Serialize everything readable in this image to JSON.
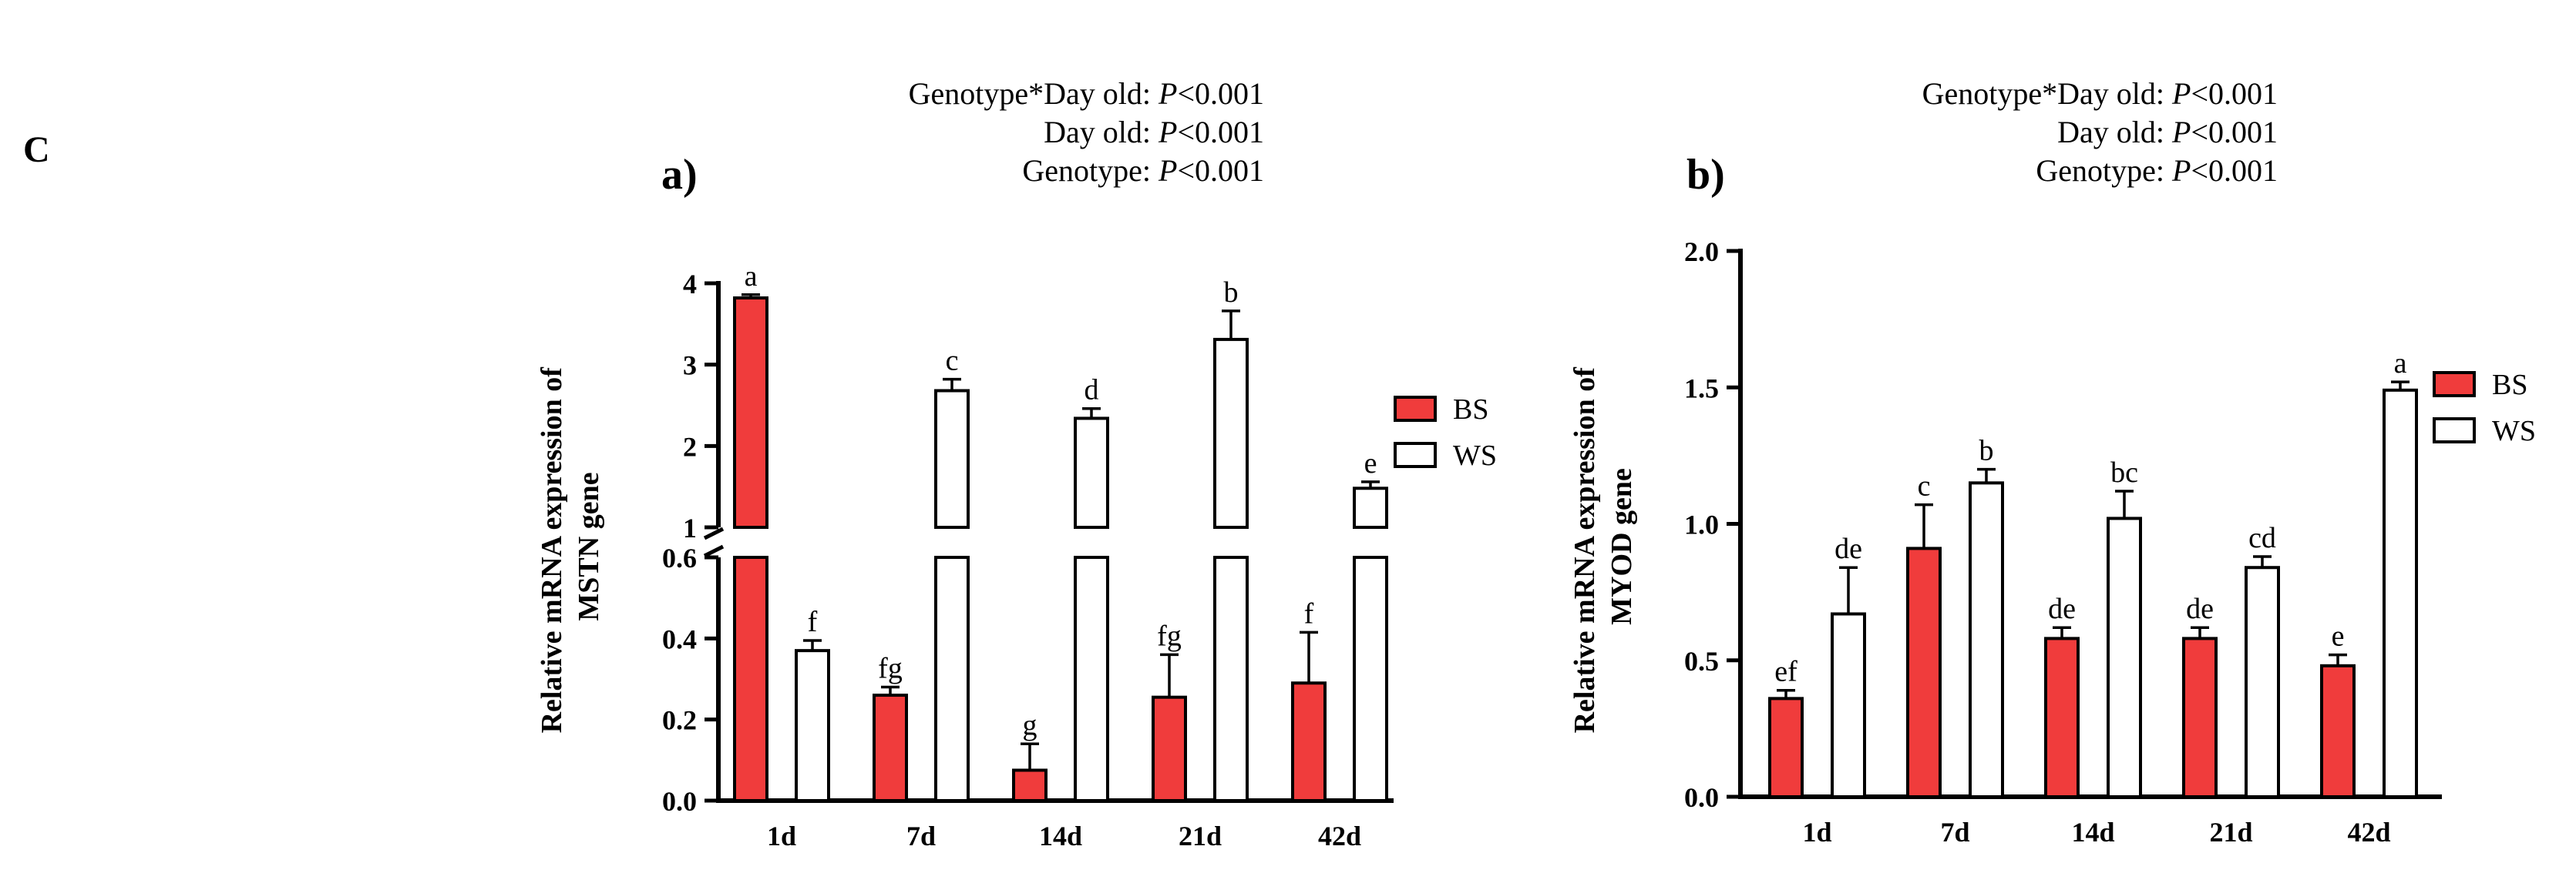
{
  "panel_label": "C",
  "chart_data": [
    {
      "type": "bar",
      "panel": "a)",
      "ylabel_line1": "Relative mRNA expression of",
      "ylabel_line2": "MSTN gene",
      "stats": [
        "Genotype*Day old: P<0.001",
        "Day old: P<0.001",
        "Genotype: P<0.001"
      ],
      "categories": [
        "1d",
        "7d",
        "14d",
        "21d",
        "42d"
      ],
      "broken_axis": {
        "lower_range": [
          0,
          0.6
        ],
        "upper_range": [
          1,
          4
        ],
        "lower_ticks": [
          "0.0",
          "0.2",
          "0.4",
          "0.6"
        ],
        "upper_ticks": [
          "1",
          "2",
          "3",
          "4"
        ]
      },
      "legend": [
        "BS",
        "WS"
      ],
      "series": [
        {
          "name": "BS",
          "color": "#f03c3c",
          "values": [
            3.82,
            0.26,
            0.075,
            0.255,
            0.29
          ],
          "errors": [
            0.04,
            0.02,
            0.065,
            0.105,
            0.125
          ],
          "letters": [
            "a",
            "fg",
            "g",
            "fg",
            "f"
          ]
        },
        {
          "name": "WS",
          "color": "#ffffff",
          "values": [
            0.37,
            2.68,
            2.34,
            3.31,
            1.48
          ],
          "errors": [
            0.025,
            0.14,
            0.12,
            0.35,
            0.08
          ],
          "letters": [
            "f",
            "c",
            "d",
            "b",
            "e"
          ]
        }
      ]
    },
    {
      "type": "bar",
      "panel": "b)",
      "ylabel_line1": "Relative mRNA expression of",
      "ylabel_line2": "MYOD gene",
      "stats": [
        "Genotype*Day old: P<0.001",
        "Day old: P<0.001",
        "Genotype: P<0.001"
      ],
      "categories": [
        "1d",
        "7d",
        "14d",
        "21d",
        "42d"
      ],
      "ylim": [
        0,
        2.0
      ],
      "yticks": [
        "0.0",
        "0.5",
        "1.0",
        "1.5",
        "2.0"
      ],
      "legend": [
        "BS",
        "WS"
      ],
      "series": [
        {
          "name": "BS",
          "color": "#f03c3c",
          "values": [
            0.36,
            0.91,
            0.58,
            0.58,
            0.48
          ],
          "errors": [
            0.03,
            0.16,
            0.04,
            0.04,
            0.04
          ],
          "letters": [
            "ef",
            "c",
            "de",
            "de",
            "e"
          ]
        },
        {
          "name": "WS",
          "color": "#ffffff",
          "values": [
            0.67,
            1.15,
            1.02,
            0.84,
            1.49
          ],
          "errors": [
            0.17,
            0.05,
            0.1,
            0.04,
            0.03
          ],
          "letters": [
            "de",
            "b",
            "bc",
            "cd",
            "a"
          ]
        }
      ]
    }
  ]
}
